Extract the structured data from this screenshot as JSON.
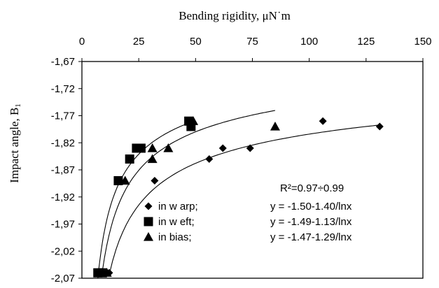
{
  "chart_data": {
    "type": "scatter",
    "title": "",
    "xlabel": "Bending rigidity, μN˙m",
    "ylabel": "Impact angle, B",
    "ylabel_sub": "1",
    "x_axis_position": "top",
    "xlim": [
      0,
      150
    ],
    "ylim": [
      -2.07,
      -1.67
    ],
    "x_ticks": [
      "0",
      "25",
      "50",
      "75",
      "100",
      "125",
      "150"
    ],
    "x_tick_values": [
      0,
      25,
      50,
      75,
      100,
      125,
      150
    ],
    "y_ticks": [
      "-1,67",
      "-1,72",
      "-1,77",
      "-1,82",
      "-1,87",
      "-1,92",
      "-1,97",
      "-2,02",
      "-2,07"
    ],
    "y_tick_values": [
      -1.67,
      -1.72,
      -1.77,
      -1.82,
      -1.87,
      -1.92,
      -1.97,
      -2.02,
      -2.07
    ],
    "grid": false,
    "legend_position": "bottom-left",
    "annotation": "R²=0.97÷0.99",
    "series": [
      {
        "name": "in w arp;",
        "equation": "y = -1.50-1.40/lnx",
        "marker": "diamond",
        "color": "#000000",
        "points": [
          [
            10,
            -2.06
          ],
          [
            12,
            -2.06
          ],
          [
            32,
            -1.89
          ],
          [
            56,
            -1.85
          ],
          [
            62,
            -1.83
          ],
          [
            74,
            -1.83
          ],
          [
            106,
            -1.78
          ],
          [
            131,
            -1.79
          ]
        ],
        "fit": {
          "a": -1.5,
          "b": -1.4,
          "x_range": [
            12,
            131
          ]
        }
      },
      {
        "name": "in w eft;",
        "equation": "y = -1.49-1.13/lnx",
        "marker": "square",
        "color": "#000000",
        "points": [
          [
            7,
            -2.06
          ],
          [
            9,
            -2.06
          ],
          [
            16,
            -1.89
          ],
          [
            21,
            -1.85
          ],
          [
            24,
            -1.83
          ],
          [
            26,
            -1.83
          ],
          [
            47,
            -1.78
          ],
          [
            48,
            -1.79
          ]
        ],
        "fit": {
          "a": -1.49,
          "b": -1.13,
          "x_range": [
            7,
            47
          ]
        }
      },
      {
        "name": "in bias;",
        "equation": "y = -1.47-1.29/lnx",
        "marker": "triangle",
        "color": "#000000",
        "points": [
          [
            9,
            -2.06
          ],
          [
            11,
            -2.06
          ],
          [
            19,
            -1.89
          ],
          [
            31,
            -1.85
          ],
          [
            31,
            -1.83
          ],
          [
            38,
            -1.83
          ],
          [
            49,
            -1.78
          ],
          [
            85,
            -1.79
          ]
        ],
        "fit": {
          "a": -1.47,
          "b": -1.29,
          "x_range": [
            9,
            85
          ]
        }
      }
    ]
  }
}
